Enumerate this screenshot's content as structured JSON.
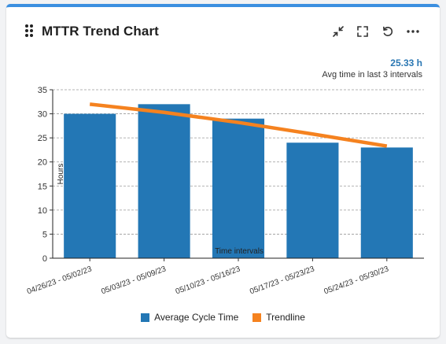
{
  "widget": {
    "title": "MTTR Trend Chart",
    "toolbar": {
      "collapse_icon": "collapse-arrows-icon",
      "fullscreen_icon": "fullscreen-icon",
      "refresh_icon": "refresh-icon",
      "more_icon": "more-dots-icon"
    }
  },
  "summary": {
    "value": "25.33 h",
    "label": "Avg time in last 3 intervals",
    "color": "#2a77b3"
  },
  "chart_data": {
    "type": "bar",
    "categories": [
      "04/26/23 - 05/02/23",
      "05/03/23 - 05/09/23",
      "05/10/23 - 05/16/23",
      "05/17/23 - 05/23/23",
      "05/24/23 - 05/30/23"
    ],
    "series": [
      {
        "name": "Average Cycle Time",
        "type": "bar",
        "values": [
          30,
          32,
          29,
          24,
          23
        ],
        "color": "#2377b5"
      },
      {
        "name": "Trendline",
        "type": "line",
        "values": [
          32.0,
          30.3,
          28.2,
          25.8,
          23.3
        ],
        "color": "#f5821f"
      }
    ],
    "xlabel": "Time intervals",
    "ylabel": "Hours",
    "ylim": [
      0,
      35
    ],
    "yticks": [
      0,
      5,
      10,
      15,
      20,
      25,
      30,
      35
    ],
    "grid": true,
    "legend": "bottom-center"
  }
}
